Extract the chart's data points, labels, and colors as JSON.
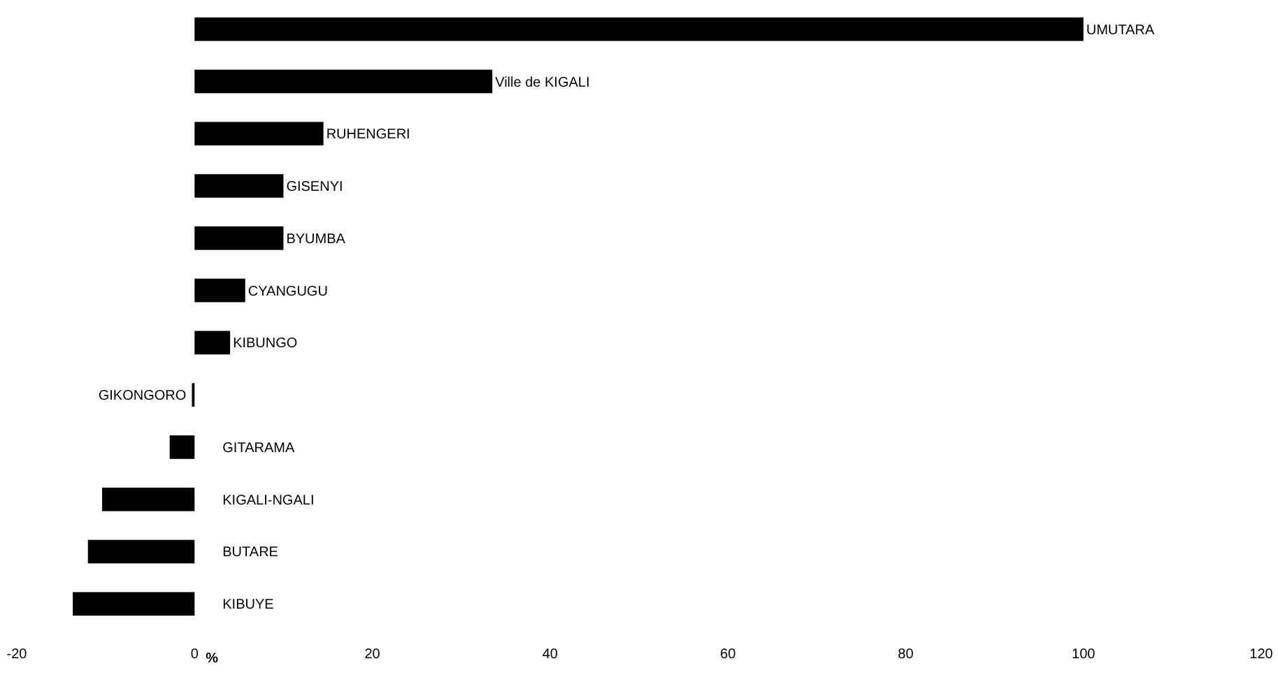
{
  "chart_data": {
    "type": "bar",
    "orientation": "horizontal",
    "xlabel": "%",
    "categories": [
      "UMUTARA",
      "Ville de KIGALI",
      "RUHENGERI",
      "GISENYI",
      "BYUMBA",
      "CYANGUGU",
      "KIBUNGO",
      "GIKONGORO",
      "GITARAMA",
      "KIGALI-NGALI",
      "BUTARE",
      "KIBUYE"
    ],
    "values": [
      100,
      33.5,
      14.5,
      10,
      10,
      5.7,
      4,
      -0.3,
      -2.8,
      -10.4,
      -12,
      -13.7
    ],
    "color": "#000000",
    "xlim": [
      -20,
      120
    ],
    "xticks": [
      -20,
      0,
      20,
      40,
      60,
      80,
      100,
      120
    ],
    "grid": false
  }
}
